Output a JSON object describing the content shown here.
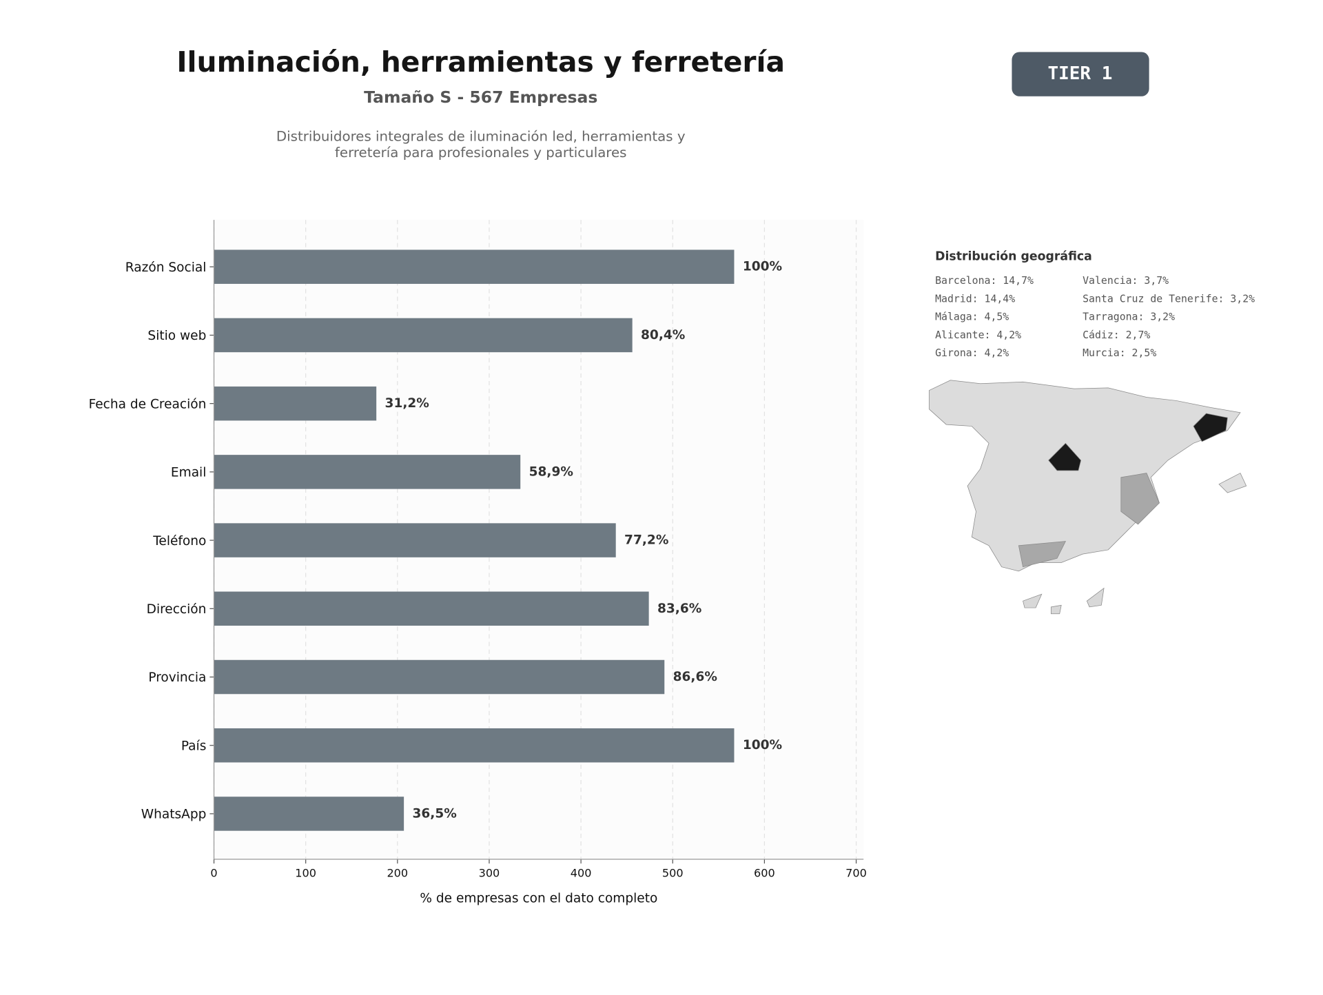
{
  "chart_data": {
    "type": "barh",
    "title": "Iluminación, herramientas y ferretería",
    "subtitle": "Tamaño S - 567 Empresas",
    "description": [
      "Distribuidores integrales de iluminación led, herramientas y",
      "ferretería para profesionales y particulares"
    ],
    "badge": "TIER 1",
    "xlabel": "% de empresas con el dato completo",
    "categories": [
      "Razón Social",
      "Sitio web",
      "Fecha de Creación",
      "Email",
      "Teléfono",
      "Dirección",
      "Provincia",
      "País",
      "WhatsApp"
    ],
    "values": [
      567,
      456,
      177,
      334,
      438,
      474,
      491,
      567,
      207
    ],
    "value_labels": [
      "100%",
      "80,4%",
      "31,2%",
      "58,9%",
      "77,2%",
      "83,6%",
      "86,6%",
      "100%",
      "36,5%"
    ],
    "color": "#6e7a83",
    "xlim": [
      0,
      708
    ],
    "xticks": [
      0,
      100,
      200,
      300,
      400,
      500,
      600,
      700
    ],
    "grid": true,
    "geo": {
      "title": "Distribución geográfica",
      "items": [
        "Barcelona: 14,7%",
        "Madrid: 14,4%",
        "Málaga: 4,5%",
        "Alicante: 4,2%",
        "Girona: 4,2%",
        "Valencia: 3,7%",
        "Santa Cruz de Tenerife: 3,2%",
        "Tarragona: 3,2%",
        "Cádiz: 2,7%",
        "Murcia: 2,5%"
      ]
    }
  }
}
